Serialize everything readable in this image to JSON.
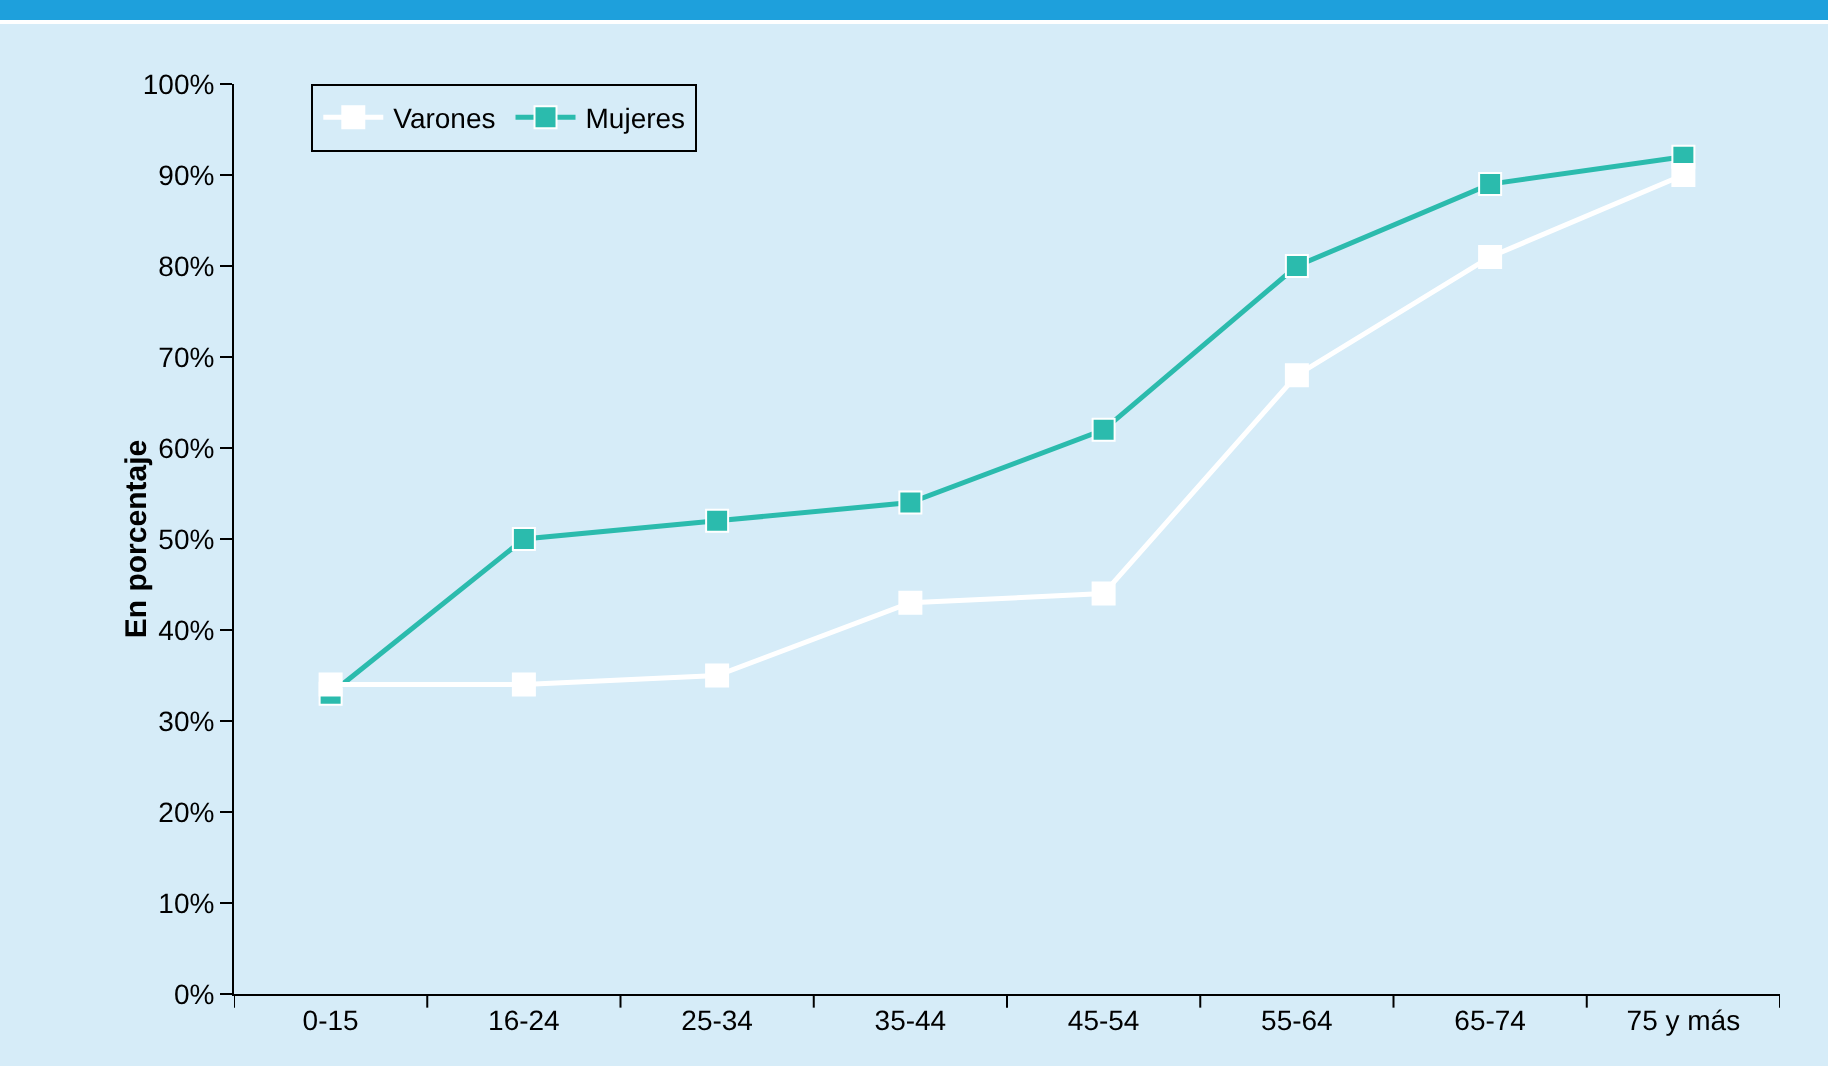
{
  "chart_data": {
    "type": "line",
    "ylabel": "En porcentaje",
    "categories": [
      "0-15",
      "16-24",
      "25-34",
      "35-44",
      "45-54",
      "55-64",
      "65-74",
      "75 y más"
    ],
    "series": [
      {
        "name": "Varones",
        "color": "#ffffff",
        "values": [
          34,
          34,
          35,
          43,
          44,
          68,
          81,
          90
        ]
      },
      {
        "name": "Mujeres",
        "color": "#2bbbad",
        "values": [
          33,
          50,
          52,
          54,
          62,
          80,
          89,
          92
        ]
      }
    ],
    "ylim": [
      0,
      100
    ],
    "yticks": [
      {
        "value": 0,
        "label": "0%"
      },
      {
        "value": 10,
        "label": "10%"
      },
      {
        "value": 20,
        "label": "20%"
      },
      {
        "value": 30,
        "label": "30%"
      },
      {
        "value": 40,
        "label": "40%"
      },
      {
        "value": 50,
        "label": "50%"
      },
      {
        "value": 60,
        "label": "60%"
      },
      {
        "value": 70,
        "label": "70%"
      },
      {
        "value": 80,
        "label": "80%"
      },
      {
        "value": 90,
        "label": "90%"
      },
      {
        "value": 100,
        "label": "100%"
      }
    ],
    "grid": false,
    "legend": "top left",
    "marker": "square",
    "line_style": "solid"
  }
}
